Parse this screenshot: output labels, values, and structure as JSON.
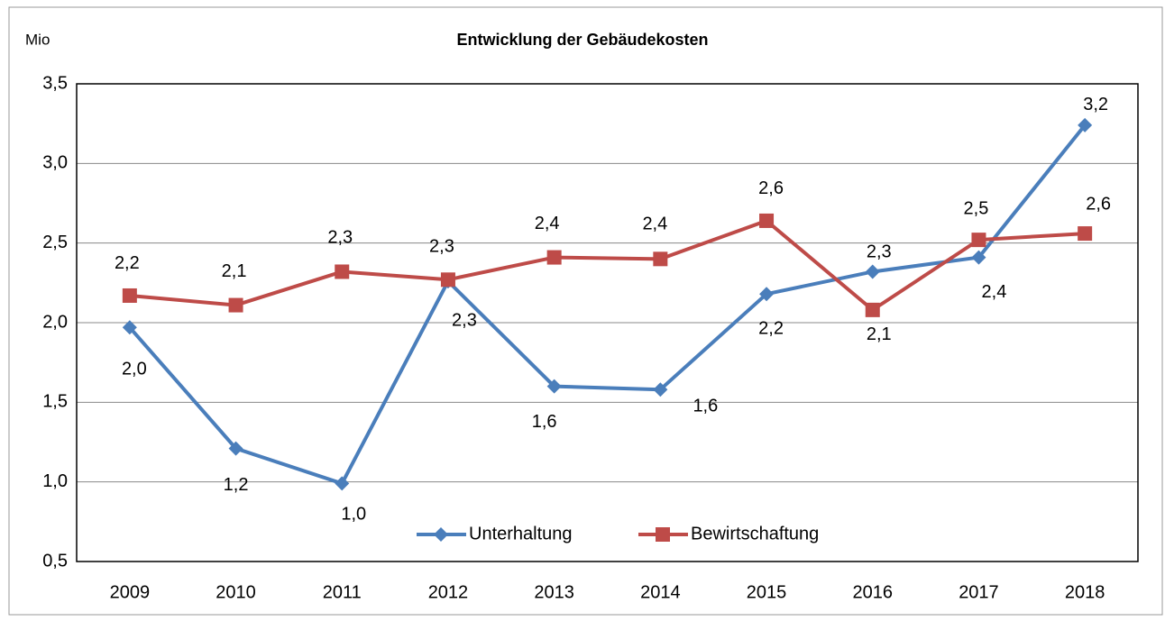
{
  "chart_data": {
    "type": "line",
    "title": "Entwicklung der Gebäudekosten",
    "y_unit": "Mio",
    "categories": [
      "2009",
      "2010",
      "2011",
      "2012",
      "2013",
      "2014",
      "2015",
      "2016",
      "2017",
      "2018"
    ],
    "series": [
      {
        "name": "Unterhaltung",
        "color": "#4a7ebb",
        "marker": "diamond",
        "values": [
          1.97,
          1.21,
          0.99,
          2.26,
          1.6,
          1.58,
          2.18,
          2.32,
          2.41,
          3.24
        ],
        "value_labels": [
          "2,0",
          "1,2",
          "1,0",
          "2,3",
          "1,6",
          "1,6",
          "2,2",
          "2,3",
          "2,4",
          "3,2"
        ]
      },
      {
        "name": "Bewirtschaftung",
        "color": "#be4b48",
        "marker": "square",
        "values": [
          2.17,
          2.11,
          2.32,
          2.27,
          2.41,
          2.4,
          2.64,
          2.08,
          2.52,
          2.56
        ],
        "value_labels": [
          "2,2",
          "2,1",
          "2,3",
          "2,3",
          "2,4",
          "2,4",
          "2,6",
          "2,1",
          "2,5",
          "2,6"
        ]
      }
    ],
    "ylim": [
      0.5,
      3.5
    ],
    "yticks": [
      {
        "value": 0.5,
        "label": "0,5"
      },
      {
        "value": 1,
        "label": "1,0"
      },
      {
        "value": 1.5,
        "label": "1,5"
      },
      {
        "value": 2,
        "label": "2,0"
      },
      {
        "value": 2.5,
        "label": "2,5"
      },
      {
        "value": 3,
        "label": "3,0"
      },
      {
        "value": 3.5,
        "label": "3,5"
      }
    ],
    "grid": true,
    "legend": "bottom"
  }
}
